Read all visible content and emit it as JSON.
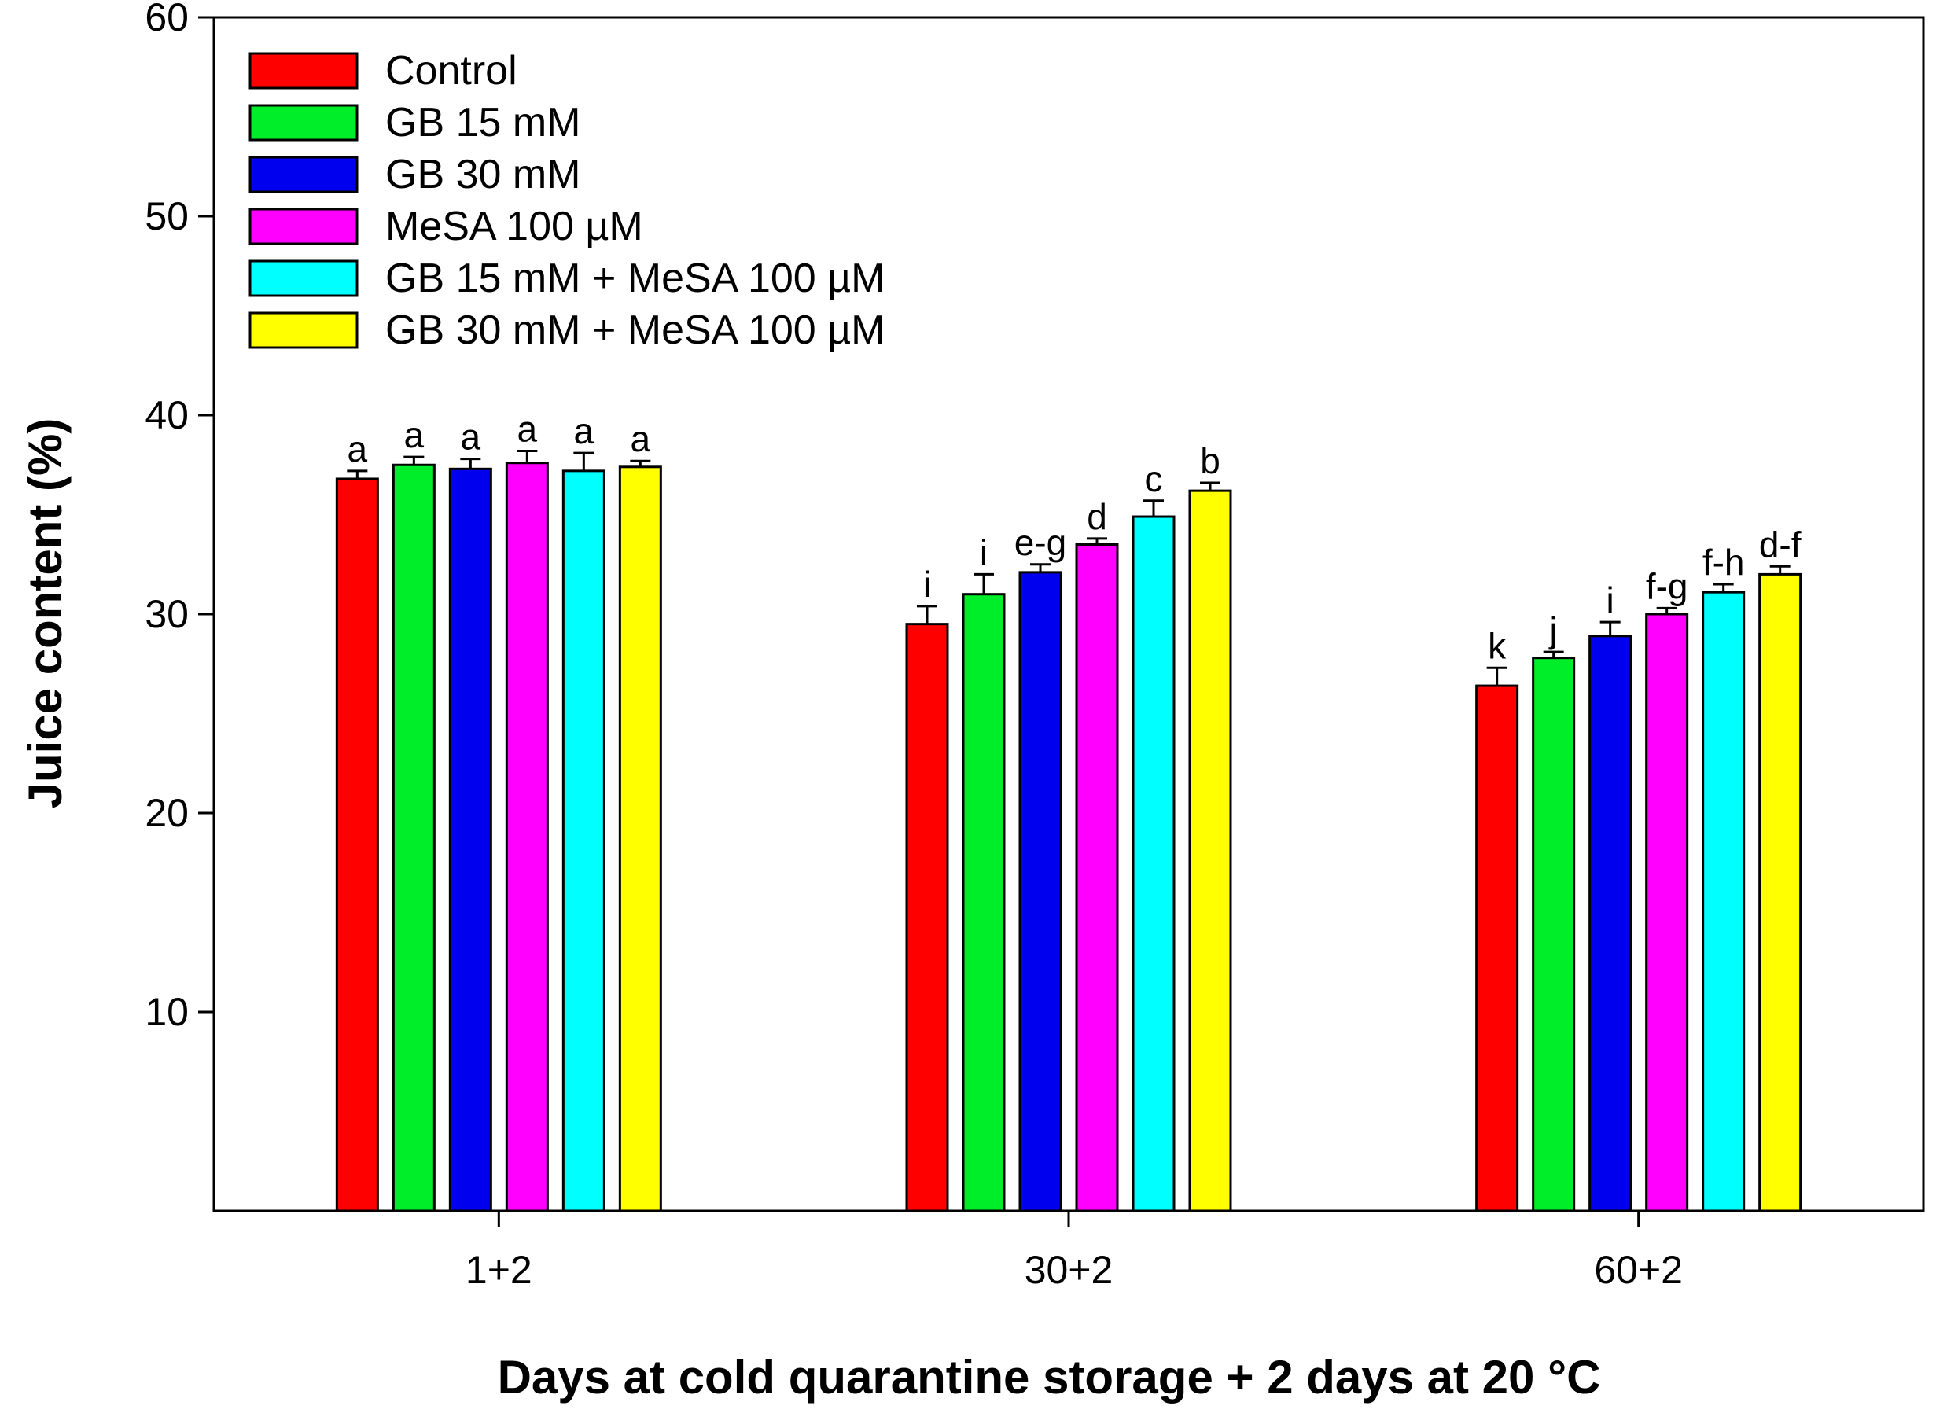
{
  "chart_data": {
    "type": "bar",
    "title": "",
    "xlabel": "Days at cold quarantine storage + 2 days at 20 °C",
    "ylabel": "Juice content (%)",
    "ylim": [
      0,
      60
    ],
    "yticks": [
      10,
      20,
      30,
      40,
      50,
      60
    ],
    "grid": false,
    "legend_position": "top-left",
    "categories": [
      "1+2",
      "30+2",
      "60+2"
    ],
    "series": [
      {
        "name": "Control",
        "color": "#ff0000",
        "values": [
          36.8,
          29.5,
          26.4
        ],
        "errors": [
          0.4,
          0.9,
          0.9
        ],
        "letters": [
          "a",
          "i",
          "k"
        ]
      },
      {
        "name": "GB 15 mM",
        "color": "#00ee2a",
        "values": [
          37.5,
          31.0,
          27.8
        ],
        "errors": [
          0.4,
          1.0,
          0.3
        ],
        "letters": [
          "a",
          "i",
          "j"
        ]
      },
      {
        "name": "GB 30 mM",
        "color": "#0000ee",
        "values": [
          37.3,
          32.1,
          28.9
        ],
        "errors": [
          0.5,
          0.4,
          0.7
        ],
        "letters": [
          "a",
          "e-g",
          "i"
        ]
      },
      {
        "name": "MeSA 100 µM",
        "color": "#ff00ff",
        "values": [
          37.6,
          33.5,
          30.0
        ],
        "errors": [
          0.6,
          0.3,
          0.3
        ],
        "letters": [
          "a",
          "d",
          "f-g"
        ]
      },
      {
        "name": "GB 15 mM + MeSA 100 µM",
        "color": "#00ffff",
        "values": [
          37.2,
          34.9,
          31.1
        ],
        "errors": [
          0.9,
          0.8,
          0.4
        ],
        "letters": [
          "a",
          "c",
          "f-h"
        ]
      },
      {
        "name": "GB 30 mM + MeSA 100 µM",
        "color": "#ffff00",
        "values": [
          37.4,
          36.2,
          32.0
        ],
        "errors": [
          0.3,
          0.4,
          0.4
        ],
        "letters": [
          "a",
          "b",
          "d-f"
        ]
      }
    ]
  }
}
